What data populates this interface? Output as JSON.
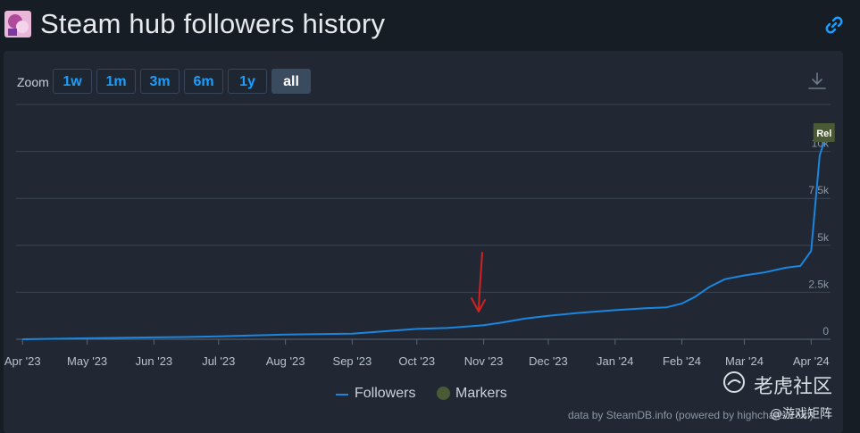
{
  "header": {
    "title": "Steam hub followers history",
    "link_icon": "link-icon"
  },
  "toolbar": {
    "zoom_label": "Zoom",
    "buttons": [
      "1w",
      "1m",
      "3m",
      "6m",
      "1y",
      "all"
    ],
    "active": "all",
    "download_icon": "download-icon"
  },
  "chart_data": {
    "type": "line",
    "x_dates": [
      "2023-04-01",
      "2023-05-01",
      "2023-06-01",
      "2023-06-15",
      "2023-07-01",
      "2023-08-01",
      "2023-09-01",
      "2023-10-01",
      "2023-10-15",
      "2023-11-01",
      "2023-11-10",
      "2023-11-20",
      "2023-12-01",
      "2023-12-15",
      "2024-01-01",
      "2024-01-15",
      "2024-01-25",
      "2024-02-01",
      "2024-02-07",
      "2024-02-14",
      "2024-02-21",
      "2024-03-01",
      "2024-03-10",
      "2024-03-20",
      "2024-03-27",
      "2024-04-01",
      "2024-04-05",
      "2024-04-07"
    ],
    "series": [
      {
        "name": "Followers",
        "color": "#1a86e0",
        "values": [
          0,
          50,
          100,
          120,
          150,
          250,
          300,
          550,
          600,
          750,
          900,
          1100,
          1250,
          1400,
          1550,
          1650,
          1700,
          1900,
          2250,
          2800,
          3200,
          3400,
          3550,
          3800,
          3900,
          4700,
          9800,
          10500
        ]
      }
    ],
    "x_tick_labels": [
      "Apr '23",
      "May '23",
      "Jun '23",
      "Jul '23",
      "Aug '23",
      "Sep '23",
      "Oct '23",
      "Nov '23",
      "Dec '23",
      "Jan '24",
      "Feb '24",
      "Mar '24",
      "Apr '24"
    ],
    "y_ticks": [
      0,
      2500,
      5000,
      7500,
      10000
    ],
    "y_tick_labels": [
      "0",
      "2.5k",
      "5k",
      "7.5k",
      "10k"
    ],
    "ylim": [
      0,
      12500
    ],
    "markers": [
      {
        "label": "Rel",
        "date": "2024-04-07",
        "color": "#4a5a34"
      }
    ],
    "legend": [
      "Followers",
      "Markers"
    ],
    "legend_position": "bottom-center",
    "grid": true,
    "annotation": "red hand-drawn arrow pointing at Nov '23"
  },
  "legend": {
    "followers": "Followers",
    "markers": "Markers"
  },
  "credit": "data by SteamDB.info (powered by highcharts.com)",
  "watermark": {
    "main": "老虎社区",
    "sub": "@游戏矩阵"
  }
}
